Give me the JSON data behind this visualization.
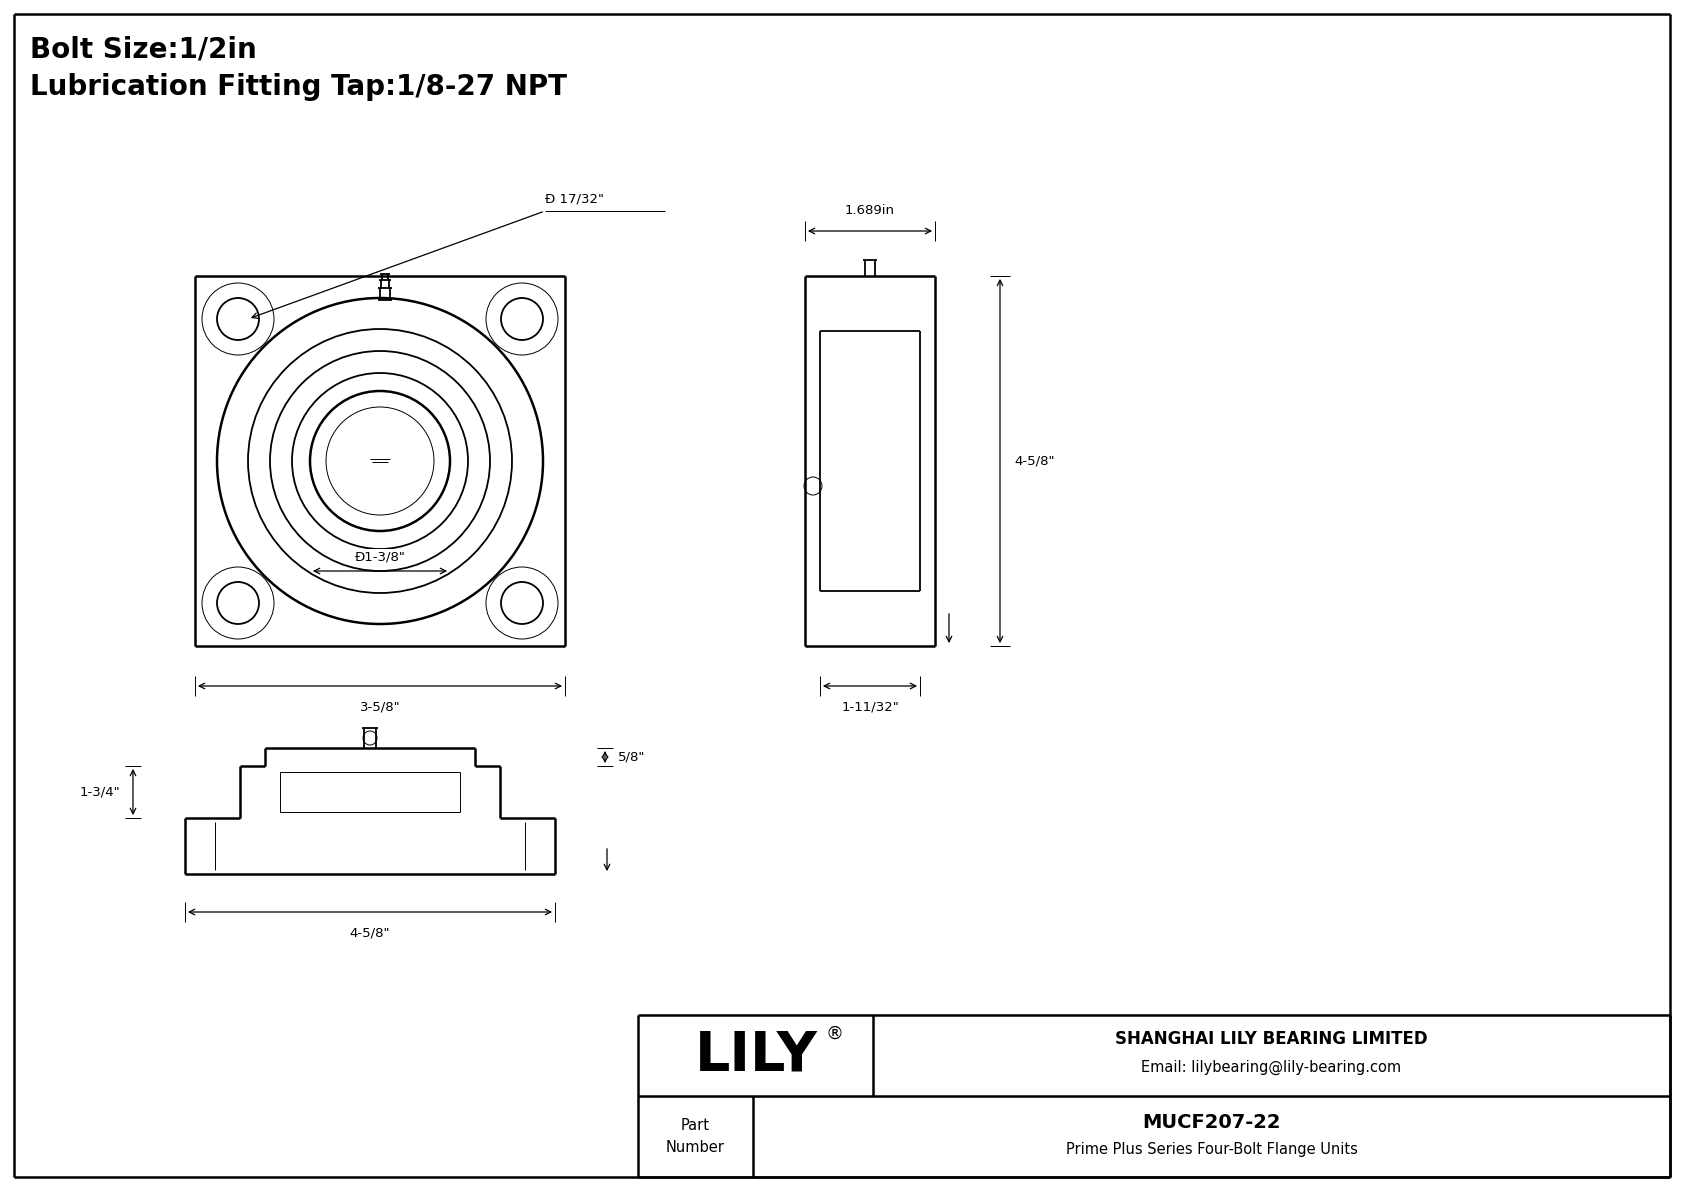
{
  "title_line1": "Bolt Size:1/2in",
  "title_line2": "Lubrication Fitting Tap:1/8-27 NPT",
  "line_color": "#000000",
  "bg_color": "#ffffff",
  "company": "SHANGHAI LILY BEARING LIMITED",
  "email": "Email: lilybearing@lily-bearing.com",
  "part_number": "MUCF207-22",
  "part_desc": "Prime Plus Series Four-Bolt Flange Units",
  "brand": "LILY",
  "brand_reg": "®",
  "dim_bolt_hole": "Ð 17/32\"",
  "dim_bore": "Ð1-3/8\"",
  "dim_width_front": "3-5/8\"",
  "dim_height_side": "4-5/8\"",
  "dim_depth_top": "1.689in",
  "dim_depth_bot": "1-11/32\"",
  "dim_step_h": "5/8\"",
  "dim_width_bot": "4-5/8\"",
  "dim_base_h": "1-3/4\""
}
